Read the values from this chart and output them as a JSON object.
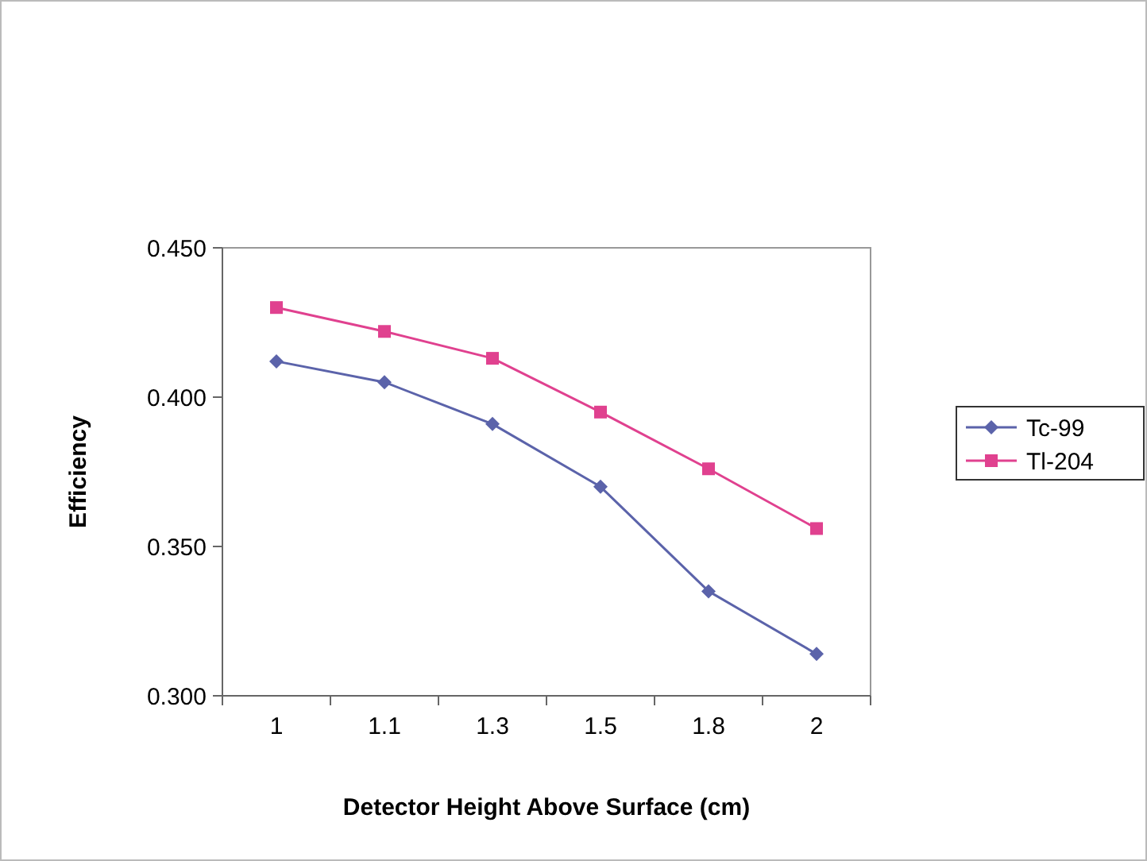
{
  "chart_data": {
    "type": "line",
    "xlabel": "Detector Height Above Surface (cm)",
    "ylabel": "Efficiency",
    "categories": [
      "1",
      "1.1",
      "1.3",
      "1.5",
      "1.8",
      "2"
    ],
    "series": [
      {
        "name": "Tc-99",
        "color": "#5b63aa",
        "marker": "diamond",
        "values": [
          0.412,
          0.405,
          0.391,
          0.37,
          0.335,
          0.314
        ]
      },
      {
        "name": "Tl-204",
        "color": "#e0418f",
        "marker": "square",
        "values": [
          0.43,
          0.422,
          0.413,
          0.395,
          0.376,
          0.356
        ]
      }
    ],
    "ylim": [
      0.3,
      0.45
    ],
    "yticks": [
      {
        "value": 0.3,
        "label": "0.300"
      },
      {
        "value": 0.35,
        "label": "0.350"
      },
      {
        "value": 0.4,
        "label": "0.400"
      },
      {
        "value": 0.45,
        "label": "0.450"
      }
    ],
    "grid": false,
    "legend": "right"
  }
}
